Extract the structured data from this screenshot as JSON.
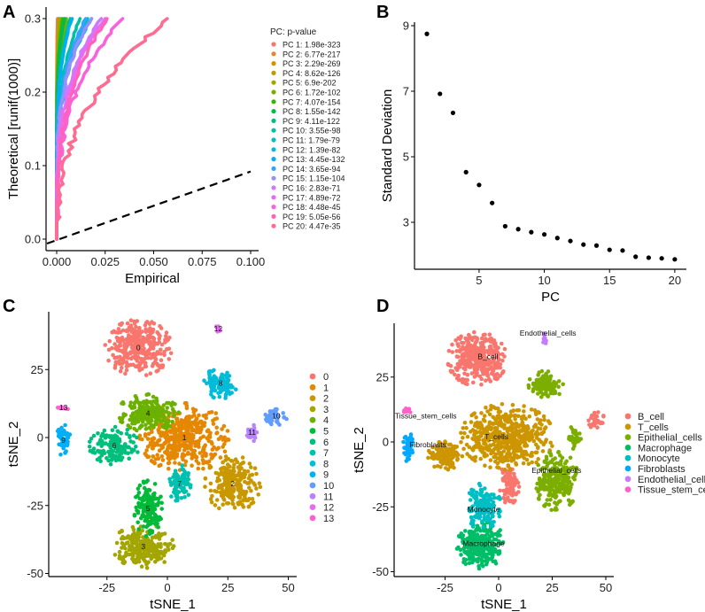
{
  "chart_data": [
    {
      "panel": "A",
      "type": "line",
      "xlabel": "Empirical",
      "ylabel": "Theoretical [runif(1000)]",
      "xlim": [
        -0.005,
        0.105
      ],
      "ylim": [
        -0.01,
        0.31
      ],
      "xticks": [
        "0.000",
        "0.025",
        "0.050",
        "0.075",
        "0.100"
      ],
      "xtick_values": [
        0,
        0.025,
        0.05,
        0.075,
        0.1
      ],
      "yticks": [
        "0.0",
        "0.1",
        "0.2",
        "0.3"
      ],
      "ytick_values": [
        0,
        0.1,
        0.2,
        0.3
      ],
      "reference_line": {
        "style": "dashed",
        "color": "#000000",
        "from": [
          -0.005,
          -0.006
        ],
        "to": [
          0.1,
          0.092
        ]
      },
      "legend_title": "PC: p-value",
      "legend_position": "right",
      "series": [
        {
          "name": "PC 1: 1.98e-323",
          "color": "#F8766D",
          "max_empirical": 0.0004,
          "curvature": 8
        },
        {
          "name": "PC 2: 6.77e-217",
          "color": "#EA8331",
          "max_empirical": 0.0008,
          "curvature": 7
        },
        {
          "name": "PC 3: 2.29e-269",
          "color": "#D89000",
          "max_empirical": 0.0012,
          "curvature": 7
        },
        {
          "name": "PC 4: 8.62e-126",
          "color": "#C09B00",
          "max_empirical": 0.002,
          "curvature": 6
        },
        {
          "name": "PC 5: 6.9e-202",
          "color": "#A3A500",
          "max_empirical": 0.0015,
          "curvature": 6
        },
        {
          "name": "PC 6: 1.72e-102",
          "color": "#7CAE00",
          "max_empirical": 0.005,
          "curvature": 5
        },
        {
          "name": "PC 7: 4.07e-154",
          "color": "#39B600",
          "max_empirical": 0.003,
          "curvature": 6
        },
        {
          "name": "PC 8: 1.55e-142",
          "color": "#00BB4E",
          "max_empirical": 0.004,
          "curvature": 6
        },
        {
          "name": "PC 9: 4.11e-122",
          "color": "#00BF7D",
          "max_empirical": 0.007,
          "curvature": 5
        },
        {
          "name": "PC 10: 3.55e-98",
          "color": "#00C1A3",
          "max_empirical": 0.012,
          "curvature": 4
        },
        {
          "name": "PC 11: 1.79e-79",
          "color": "#00BFC4",
          "max_empirical": 0.016,
          "curvature": 4
        },
        {
          "name": "PC 12: 1.39e-82",
          "color": "#00BAE0",
          "max_empirical": 0.018,
          "curvature": 4
        },
        {
          "name": "PC 13: 4.45e-132",
          "color": "#00B0F6",
          "max_empirical": 0.008,
          "curvature": 5
        },
        {
          "name": "PC 14: 3.65e-94",
          "color": "#35A2FF",
          "max_empirical": 0.015,
          "curvature": 4
        },
        {
          "name": "PC 15: 1.15e-104",
          "color": "#9590FF",
          "max_empirical": 0.018,
          "curvature": 4
        },
        {
          "name": "PC 16: 2.83e-71",
          "color": "#C77CFF",
          "max_empirical": 0.023,
          "curvature": 3.5
        },
        {
          "name": "PC 17: 4.89e-72",
          "color": "#E76BF3",
          "max_empirical": 0.025,
          "curvature": 3.5
        },
        {
          "name": "PC 18: 4.48e-45",
          "color": "#FA62DB",
          "max_empirical": 0.034,
          "curvature": 3
        },
        {
          "name": "PC 19: 5.05e-56",
          "color": "#FF62BC",
          "max_empirical": 0.026,
          "curvature": 3
        },
        {
          "name": "PC 20: 4.47e-35",
          "color": "#FF6C91",
          "max_empirical": 0.057,
          "curvature": 2.4
        }
      ]
    },
    {
      "panel": "B",
      "type": "scatter",
      "xlabel": "PC",
      "ylabel": "Standard Deviation",
      "xticks": [
        "5",
        "10",
        "15",
        "20"
      ],
      "xtick_values": [
        5,
        10,
        15,
        20
      ],
      "yticks": [
        "3",
        "5",
        "7",
        "9"
      ],
      "ytick_values": [
        3,
        5,
        7,
        9
      ],
      "x": [
        1,
        2,
        3,
        4,
        5,
        6,
        7,
        8,
        9,
        10,
        11,
        12,
        13,
        14,
        15,
        16,
        17,
        18,
        19,
        20
      ],
      "y": [
        8.75,
        6.92,
        6.34,
        4.53,
        4.14,
        3.59,
        2.88,
        2.79,
        2.7,
        2.63,
        2.52,
        2.43,
        2.32,
        2.29,
        2.16,
        2.14,
        1.95,
        1.92,
        1.9,
        1.87
      ]
    },
    {
      "panel": "C",
      "type": "scatter",
      "xlabel": "tSNE_1",
      "ylabel": "tSNE_2",
      "xticks": [
        "-25",
        "0",
        "25",
        "50"
      ],
      "xtick_values": [
        -25,
        0,
        25,
        50
      ],
      "yticks": [
        "-50",
        "-25",
        "0",
        "25"
      ],
      "ytick_values": [
        -50,
        -25,
        0,
        25
      ],
      "legend_position": "right",
      "clusters": [
        {
          "name": "0",
          "color": "#F8766D",
          "center": [
            -12,
            33
          ],
          "spread": [
            12,
            9
          ],
          "n": 320
        },
        {
          "name": "1",
          "color": "#E58700",
          "center": [
            7,
            0
          ],
          "spread": [
            16,
            11
          ],
          "n": 420
        },
        {
          "name": "2",
          "color": "#C99800",
          "center": [
            27,
            -17
          ],
          "spread": [
            10,
            9
          ],
          "n": 220
        },
        {
          "name": "3",
          "color": "#A3A500",
          "center": [
            -10,
            -40
          ],
          "spread": [
            11,
            7
          ],
          "n": 240
        },
        {
          "name": "4",
          "color": "#6BB100",
          "center": [
            -8,
            9
          ],
          "spread": [
            11,
            6
          ],
          "n": 220
        },
        {
          "name": "5",
          "color": "#00BA38",
          "center": [
            -8,
            -26
          ],
          "spread": [
            5,
            9
          ],
          "n": 150
        },
        {
          "name": "6",
          "color": "#00BF7D",
          "center": [
            -22,
            -3
          ],
          "spread": [
            9,
            6
          ],
          "n": 150
        },
        {
          "name": "7",
          "color": "#00C0AF",
          "center": [
            5,
            -17
          ],
          "spread": [
            4,
            6
          ],
          "n": 100
        },
        {
          "name": "8",
          "color": "#00BCD8",
          "center": [
            22,
            20
          ],
          "spread": [
            6,
            5
          ],
          "n": 110
        },
        {
          "name": "9",
          "color": "#00B0F6",
          "center": [
            -43,
            -1
          ],
          "spread": [
            2.5,
            5
          ],
          "n": 50
        },
        {
          "name": "10",
          "color": "#619CFF",
          "center": [
            45,
            8
          ],
          "spread": [
            4,
            3
          ],
          "n": 40
        },
        {
          "name": "11",
          "color": "#B983FF",
          "center": [
            35,
            2
          ],
          "spread": [
            2,
            3
          ],
          "n": 30
        },
        {
          "name": "12",
          "color": "#E76BF3",
          "center": [
            21,
            40
          ],
          "spread": [
            0.8,
            2
          ],
          "n": 12
        },
        {
          "name": "13",
          "color": "#FD61D1",
          "center": [
            -43,
            11
          ],
          "spread": [
            2,
            0.8
          ],
          "n": 12
        }
      ]
    },
    {
      "panel": "D",
      "type": "scatter",
      "xlabel": "tSNE_1",
      "ylabel": "tSNE_2",
      "xticks": [
        "-25",
        "0",
        "25",
        "50"
      ],
      "xtick_values": [
        -25,
        0,
        25,
        50
      ],
      "yticks": [
        "-50",
        "-25",
        "0",
        "25"
      ],
      "ytick_values": [
        -50,
        -25,
        0,
        25
      ],
      "legend_position": "right",
      "legend": [
        {
          "name": "B_cell",
          "color": "#F8766D"
        },
        {
          "name": "T_cells",
          "color": "#CD9600"
        },
        {
          "name": "Epithelial_cells",
          "color": "#7CAE00"
        },
        {
          "name": "Macrophage",
          "color": "#00BE67"
        },
        {
          "name": "Monocyte",
          "color": "#00BFC4"
        },
        {
          "name": "Fibroblasts",
          "color": "#00A9FF"
        },
        {
          "name": "Endothelial_cells",
          "color": "#C77CFF"
        },
        {
          "name": "Tissue_stem_cells",
          "color": "#FF61CC"
        }
      ],
      "clusters": [
        {
          "type": "B_cell",
          "center": [
            -10,
            32
          ],
          "spread": [
            12,
            9
          ],
          "n": 320
        },
        {
          "type": "B_cell",
          "center": [
            5,
            -16
          ],
          "spread": [
            4,
            7
          ],
          "n": 90
        },
        {
          "type": "B_cell",
          "center": [
            46,
            8
          ],
          "spread": [
            3.5,
            3
          ],
          "n": 30
        },
        {
          "type": "T_cells",
          "center": [
            4,
            2
          ],
          "spread": [
            19,
            11
          ],
          "n": 520
        },
        {
          "type": "T_cells",
          "center": [
            -25,
            -5
          ],
          "spread": [
            7,
            5
          ],
          "n": 120
        },
        {
          "type": "Epithelial_cells",
          "center": [
            22,
            22
          ],
          "spread": [
            7,
            5
          ],
          "n": 110
        },
        {
          "type": "Epithelial_cells",
          "center": [
            27,
            -15
          ],
          "spread": [
            9,
            10
          ],
          "n": 230
        },
        {
          "type": "Epithelial_cells",
          "center": [
            35,
            2
          ],
          "spread": [
            3,
            4
          ],
          "n": 35
        },
        {
          "type": "Macrophage",
          "center": [
            -8,
            -40
          ],
          "spread": [
            10,
            8
          ],
          "n": 260
        },
        {
          "type": "Monocyte",
          "center": [
            -7,
            -25
          ],
          "spread": [
            7,
            8
          ],
          "n": 150
        },
        {
          "type": "Fibroblasts",
          "center": [
            -42,
            -2
          ],
          "spread": [
            2.5,
            5
          ],
          "n": 50
        },
        {
          "type": "Endothelial_cells",
          "center": [
            21.5,
            40
          ],
          "spread": [
            0.8,
            2
          ],
          "n": 12
        },
        {
          "type": "Tissue_stem_cells",
          "center": [
            -43,
            12
          ],
          "spread": [
            2,
            0.8
          ],
          "n": 12
        }
      ],
      "labels": [
        {
          "text": "B_cell",
          "at": [
            -5,
            33
          ]
        },
        {
          "text": "Endothelial_cells",
          "at": [
            23,
            42
          ]
        },
        {
          "text": "Tissue_stem_cells",
          "at": [
            -34,
            10
          ]
        },
        {
          "text": "T_cells",
          "at": [
            -1,
            2
          ]
        },
        {
          "text": "Fibroblasts",
          "at": [
            -33,
            -1
          ]
        },
        {
          "text": "Epithelial_cells",
          "at": [
            27,
            -11
          ]
        },
        {
          "text": "Monocyte",
          "at": [
            -7,
            -26
          ]
        },
        {
          "text": "Macrophage",
          "at": [
            -7,
            -39
          ]
        }
      ]
    }
  ],
  "panels": {
    "a": "A",
    "b": "B",
    "c": "C",
    "d": "D"
  }
}
